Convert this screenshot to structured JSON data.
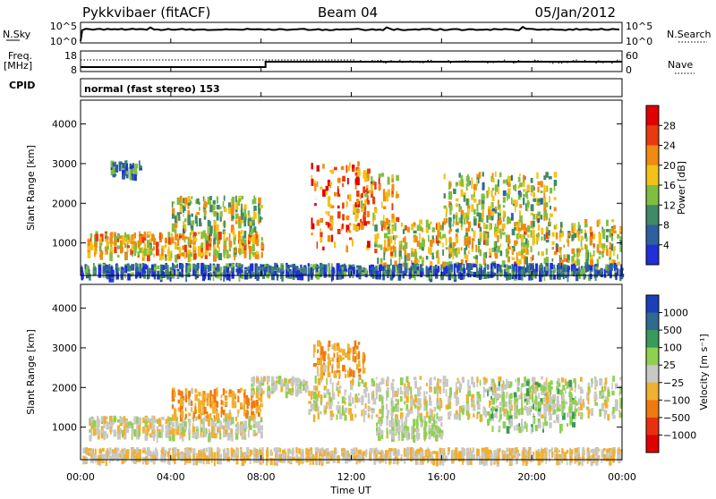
{
  "header": {
    "title": "Pykkvibaer (fitACF)",
    "beam": "Beam 04",
    "date": "05/Jan/2012"
  },
  "noise_panel": {
    "left_label": "N.Sky",
    "left_ticks": [
      "10^5",
      "10^0"
    ],
    "right_ticks": [
      "10^5",
      "10^0"
    ],
    "right_label": "N.Search"
  },
  "freq_panel": {
    "left_label_1": "Freq.",
    "left_label_2": "[MHz]",
    "left_ticks": [
      "18",
      "8"
    ],
    "right_ticks": [
      "60",
      "0"
    ],
    "right_label": "Nave"
  },
  "cpid": {
    "label": "CPID",
    "mode_text": "normal (fast stereo) 153"
  },
  "x_axis": {
    "label": "Time UT",
    "ticks": [
      "00:00",
      "04:00",
      "08:00",
      "12:00",
      "16:00",
      "20:00",
      "00:00"
    ]
  },
  "power_panel": {
    "ylabel": "Slant Range [km]",
    "yticks": [
      "4000",
      "3000",
      "2000",
      "1000"
    ],
    "colorbar_label": "Power [dB]",
    "colorbar_ticks": [
      "28",
      "24",
      "20",
      "16",
      "12",
      "8",
      "4"
    ]
  },
  "velocity_panel": {
    "ylabel": "Slant Range [km]",
    "yticks": [
      "4000",
      "3000",
      "2000",
      "1000"
    ],
    "colorbar_label": "Velocity [m s⁻¹]",
    "colorbar_ticks": [
      "1000",
      "500",
      "100",
      "25",
      "−25",
      "−100",
      "−500",
      "−1000"
    ]
  },
  "chart_data": [
    {
      "type": "heatmap",
      "name": "power",
      "xlabel": "Time UT",
      "ylabel": "Slant Range [km]",
      "xlim_hours": [
        0,
        24
      ],
      "ylim": [
        180,
        4600
      ],
      "colorbar": {
        "label": "Power [dB]",
        "range": [
          0,
          30
        ],
        "ticks": [
          4,
          8,
          12,
          16,
          20,
          24,
          28
        ],
        "colors": [
          "#1f2fd8",
          "#2e5f9e",
          "#3f8a68",
          "#7fbf3f",
          "#f3c21a",
          "#f08a12",
          "#e83a10",
          "#e00000"
        ]
      },
      "regions": [
        {
          "t": [
            0.3,
            8.0
          ],
          "r": [
            700,
            1300
          ],
          "value": 18
        },
        {
          "t": [
            4.0,
            8.0
          ],
          "r": [
            1300,
            2200
          ],
          "value": 14
        },
        {
          "t": [
            1.3,
            2.6
          ],
          "r": [
            2700,
            3100
          ],
          "value": 8
        },
        {
          "t": [
            10.2,
            12.8
          ],
          "r": [
            900,
            3100
          ],
          "value": 22
        },
        {
          "t": [
            12.0,
            14.0
          ],
          "r": [
            1400,
            2800
          ],
          "value": 20
        },
        {
          "t": [
            13.0,
            23.9
          ],
          "r": [
            500,
            1600
          ],
          "value": 16
        },
        {
          "t": [
            16.0,
            21.0
          ],
          "r": [
            1600,
            2800
          ],
          "value": 14
        },
        {
          "t": [
            0.0,
            24.0
          ],
          "r": [
            200,
            500
          ],
          "value": 6
        }
      ]
    },
    {
      "type": "heatmap",
      "name": "velocity",
      "xlabel": "Time UT",
      "ylabel": "Slant Range [km]",
      "xlim_hours": [
        0,
        24
      ],
      "ylim": [
        180,
        4600
      ],
      "colorbar": {
        "label": "Velocity [m s⁻¹]",
        "range": [
          -1000,
          1000
        ],
        "ticks": [
          1000,
          500,
          100,
          25,
          -25,
          -100,
          -500,
          -1000
        ],
        "colors": [
          "#1a3fb8",
          "#2f6a8f",
          "#3a9a5a",
          "#8fd050",
          "#c8c8c4",
          "#f0b030",
          "#f07a10",
          "#e83010",
          "#e00000"
        ]
      },
      "regions": [
        {
          "t": [
            0.3,
            8.0
          ],
          "r": [
            800,
            1300
          ],
          "value": 0
        },
        {
          "t": [
            4.0,
            8.0
          ],
          "r": [
            1300,
            2000
          ],
          "value": -300
        },
        {
          "t": [
            7.5,
            10.0
          ],
          "r": [
            1900,
            2300
          ],
          "value": 0
        },
        {
          "t": [
            10.3,
            12.5
          ],
          "r": [
            2300,
            3200
          ],
          "value": -300
        },
        {
          "t": [
            10.0,
            24.0
          ],
          "r": [
            1300,
            2300
          ],
          "value": 0
        },
        {
          "t": [
            13.0,
            16.0
          ],
          "r": [
            800,
            1300
          ],
          "value": 60
        },
        {
          "t": [
            18.0,
            22.0
          ],
          "r": [
            1000,
            2200
          ],
          "value": 200
        },
        {
          "t": [
            0.0,
            24.0
          ],
          "r": [
            200,
            500
          ],
          "value": -100
        }
      ]
    }
  ]
}
